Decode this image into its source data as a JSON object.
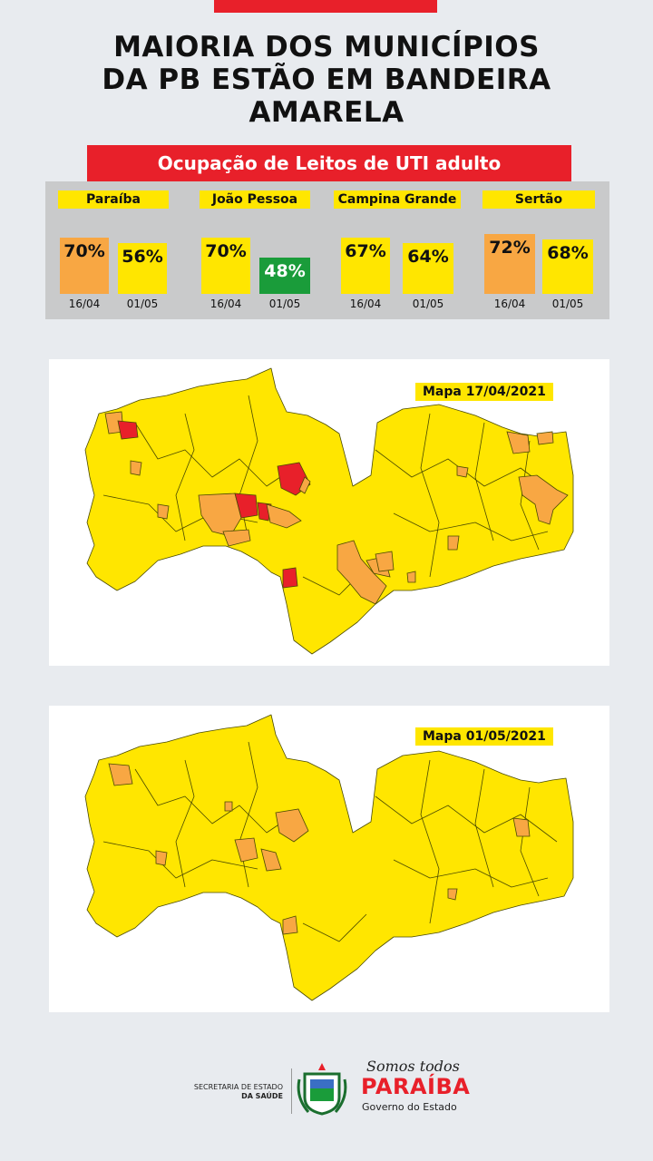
{
  "headline": {
    "line1": "MAIORIA DOS MUNICÍPIOS",
    "line2": "DA PB ESTÃO EM BANDEIRA",
    "line3": "AMARELA"
  },
  "subtitle": "Ocupação de Leitos de UTI adulto",
  "regions": [
    {
      "name": "Paraíba",
      "first": {
        "value": "70%",
        "date": "16/04",
        "color": "#f8a743"
      },
      "second": {
        "value": "56%",
        "date": "01/05",
        "color": "#ffe600"
      }
    },
    {
      "name": "João Pessoa",
      "first": {
        "value": "70%",
        "date": "16/04",
        "color": "#ffe600"
      },
      "second": {
        "value": "48%",
        "date": "01/05",
        "color": "#1a9c3a"
      }
    },
    {
      "name": "Campina Grande",
      "first": {
        "value": "67%",
        "date": "16/04",
        "color": "#ffe600"
      },
      "second": {
        "value": "64%",
        "date": "01/05",
        "color": "#ffe600"
      }
    },
    {
      "name": "Sertão",
      "first": {
        "value": "72%",
        "date": "16/04",
        "color": "#f8a743"
      },
      "second": {
        "value": "68%",
        "date": "01/05",
        "color": "#ffe600"
      }
    }
  ],
  "maps": [
    {
      "label": "Mapa 17/04/2021"
    },
    {
      "label": "Mapa 01/05/2021"
    }
  ],
  "colors": {
    "yellow": "#ffe600",
    "orange": "#f8a743",
    "red": "#e8202a",
    "green": "#1a9c3a"
  },
  "footer": {
    "secretaria_line1": "SECRETARIA DE ESTADO",
    "secretaria_line2": "DA SAÚDE",
    "somos": "Somos todos",
    "paraiba": "PARAÍBA",
    "governo": "Governo do Estado"
  }
}
